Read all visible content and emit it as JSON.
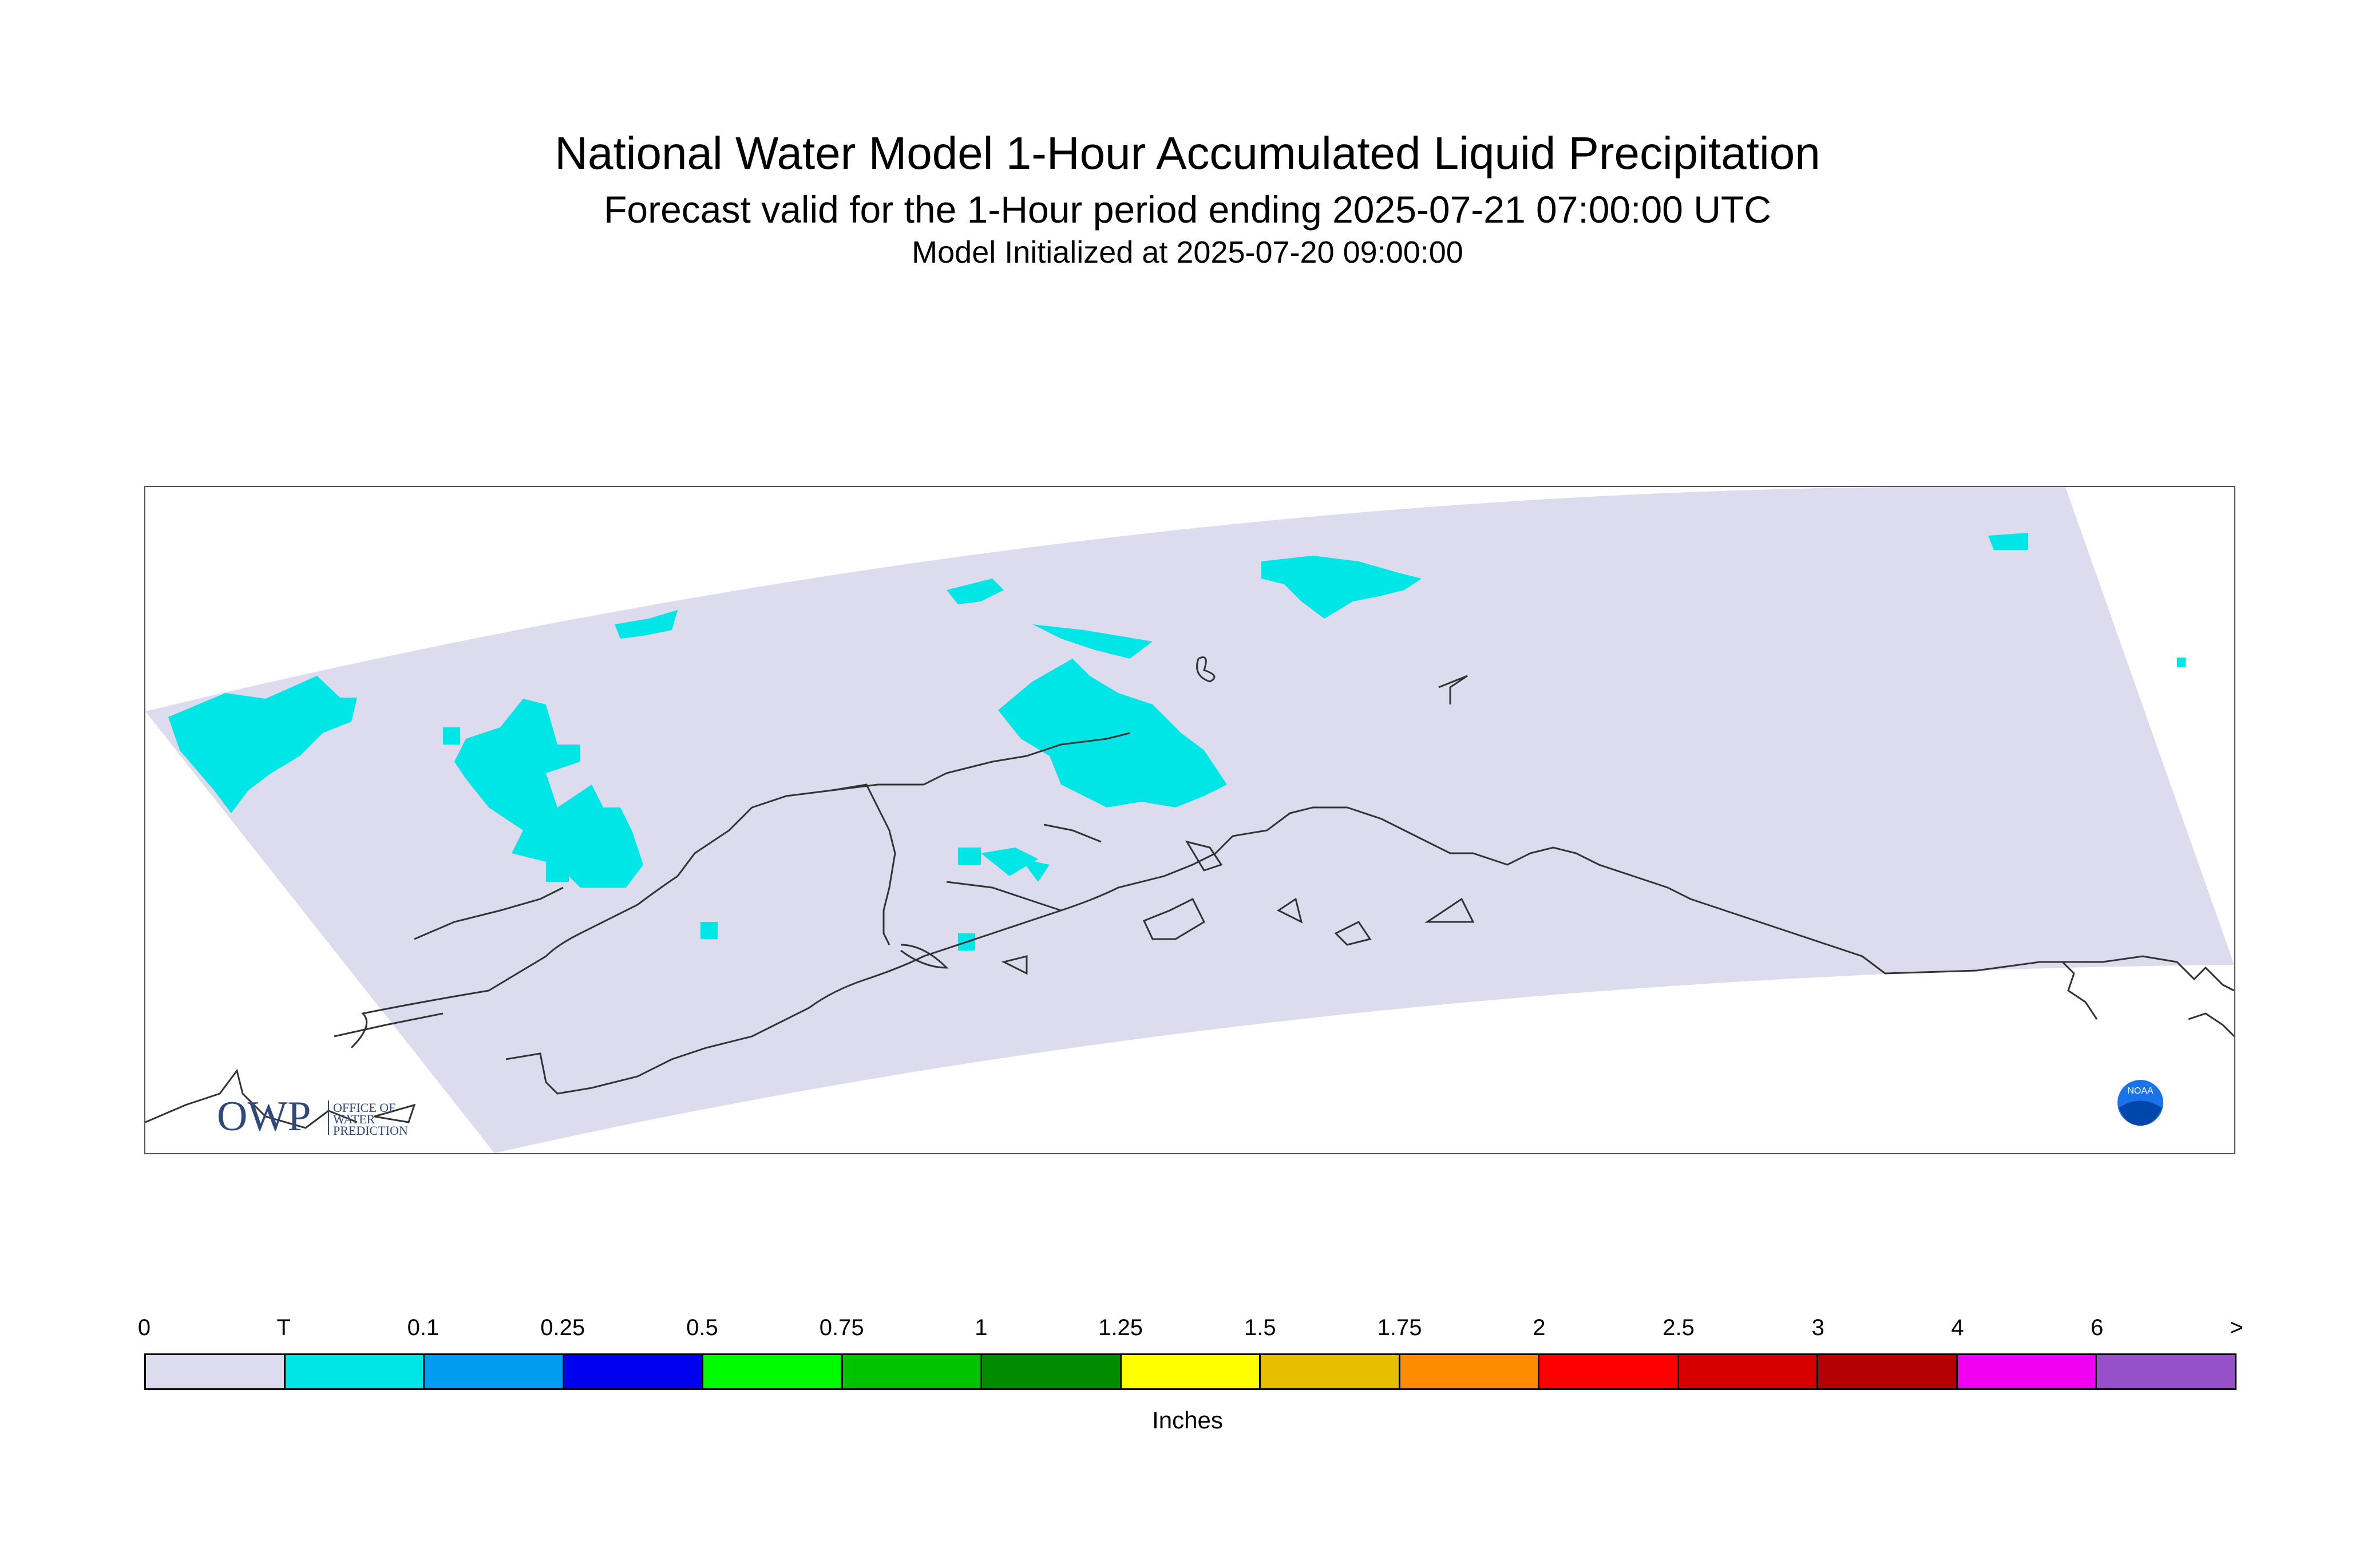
{
  "title": "National Water Model 1-Hour Accumulated Liquid Precipitation",
  "subtitle": "Forecast valid for the 1-Hour period ending 2025-07-21 07:00:00 UTC",
  "init_line": "Model Initialized at 2025-07-20 09:00:00",
  "logos": {
    "owp_letters": "OWP",
    "owp_line1": "OFFICE OF",
    "owp_line2": "WATER",
    "owp_line3": "PREDICTION",
    "noaa_text": "NOAA"
  },
  "colors": {
    "domain": "#dcdcee",
    "trace": "#00e6e6",
    "coast": "#333333"
  },
  "legend": {
    "unit": "Inches",
    "ticks": [
      "0",
      "T",
      "0.1",
      "0.25",
      "0.5",
      "0.75",
      "1",
      "1.25",
      "1.5",
      "1.75",
      "2",
      "2.5",
      "3",
      "4",
      "6",
      ">"
    ],
    "colors": [
      "#dcdcee",
      "#00e6e6",
      "#009cf0",
      "#0000f0",
      "#00fa00",
      "#00c400",
      "#008c00",
      "#ffff00",
      "#e6be00",
      "#ff8c00",
      "#ff0000",
      "#d60000",
      "#b40000",
      "#f000f0",
      "#9650c8"
    ]
  }
}
